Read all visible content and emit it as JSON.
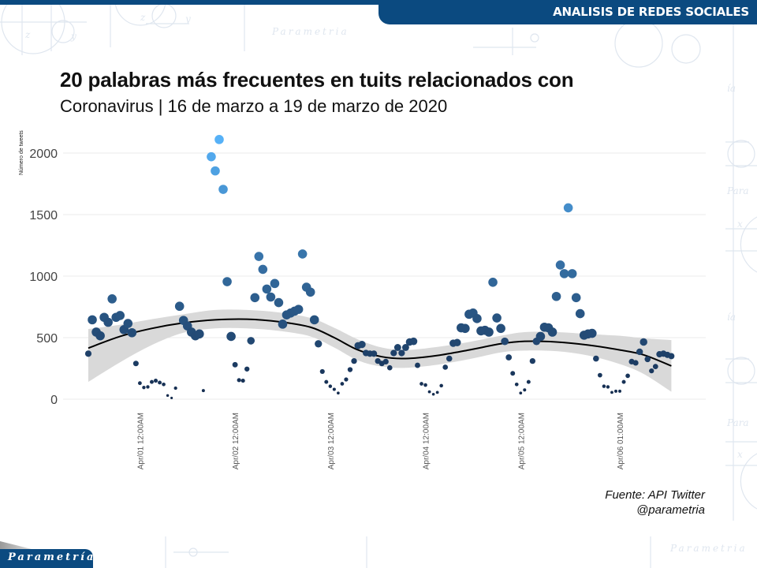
{
  "header": {
    "section_title": "ANALISIS DE REDES SOCIALES"
  },
  "footer": {
    "source_line1": "Fuente: API Twitter",
    "source_line2": "@parametria",
    "logo_text": "Parametría"
  },
  "watermark_text": "Parametría",
  "chart_data": {
    "type": "scatter",
    "title": "20 palabras más frecuentes en tuits relacionados con",
    "subtitle": "Coronavirus | 16 de marzo a 19 de marzo de 2020",
    "xlabel": "",
    "ylabel": "Número de tweets",
    "ylim": [
      0,
      2100
    ],
    "yticks": [
      0,
      500,
      1000,
      1500,
      2000
    ],
    "grid": true,
    "x_unit": "hours since first observation",
    "xticks": [
      {
        "label": "Apr/01 12:00AM",
        "hour": 13
      },
      {
        "label": "Apr/02 12:00AM",
        "hour": 37
      },
      {
        "label": "Apr/03 12:00AM",
        "hour": 61
      },
      {
        "label": "Apr/04 12:00AM",
        "hour": 85
      },
      {
        "label": "Apr/05 12:00AM",
        "hour": 109
      },
      {
        "label": "Apr/06 01:00AM",
        "hour": 134
      }
    ],
    "color_scale": {
      "low": "#13294b",
      "high": "#56b1f7"
    },
    "points": [
      {
        "x": 0,
        "y": 370
      },
      {
        "x": 1,
        "y": 645
      },
      {
        "x": 2,
        "y": 545
      },
      {
        "x": 3,
        "y": 515
      },
      {
        "x": 4,
        "y": 665
      },
      {
        "x": 5,
        "y": 625
      },
      {
        "x": 6,
        "y": 815
      },
      {
        "x": 7,
        "y": 665
      },
      {
        "x": 8,
        "y": 680
      },
      {
        "x": 9,
        "y": 565
      },
      {
        "x": 10,
        "y": 615
      },
      {
        "x": 11,
        "y": 540
      },
      {
        "x": 12,
        "y": 290
      },
      {
        "x": 13,
        "y": 130
      },
      {
        "x": 14,
        "y": 95
      },
      {
        "x": 15,
        "y": 100
      },
      {
        "x": 16,
        "y": 140
      },
      {
        "x": 17,
        "y": 150
      },
      {
        "x": 18,
        "y": 135
      },
      {
        "x": 19,
        "y": 120
      },
      {
        "x": 20,
        "y": 30
      },
      {
        "x": 21,
        "y": 10
      },
      {
        "x": 22,
        "y": 90
      },
      {
        "x": 23,
        "y": 755
      },
      {
        "x": 24,
        "y": 640
      },
      {
        "x": 25,
        "y": 595
      },
      {
        "x": 26,
        "y": 545
      },
      {
        "x": 27,
        "y": 515
      },
      {
        "x": 28,
        "y": 530
      },
      {
        "x": 29,
        "y": 70
      },
      {
        "x": 31,
        "y": 1970
      },
      {
        "x": 32,
        "y": 1855
      },
      {
        "x": 33,
        "y": 2110
      },
      {
        "x": 34,
        "y": 1705
      },
      {
        "x": 35,
        "y": 955
      },
      {
        "x": 36,
        "y": 510
      },
      {
        "x": 37,
        "y": 280
      },
      {
        "x": 38,
        "y": 155
      },
      {
        "x": 39,
        "y": 150
      },
      {
        "x": 40,
        "y": 245
      },
      {
        "x": 41,
        "y": 475
      },
      {
        "x": 42,
        "y": 825
      },
      {
        "x": 43,
        "y": 1160
      },
      {
        "x": 44,
        "y": 1055
      },
      {
        "x": 45,
        "y": 895
      },
      {
        "x": 46,
        "y": 830
      },
      {
        "x": 47,
        "y": 940
      },
      {
        "x": 48,
        "y": 785
      },
      {
        "x": 49,
        "y": 610
      },
      {
        "x": 50,
        "y": 685
      },
      {
        "x": 51,
        "y": 700
      },
      {
        "x": 52,
        "y": 715
      },
      {
        "x": 53,
        "y": 730
      },
      {
        "x": 54,
        "y": 1180
      },
      {
        "x": 55,
        "y": 910
      },
      {
        "x": 56,
        "y": 870
      },
      {
        "x": 57,
        "y": 645
      },
      {
        "x": 58,
        "y": 450
      },
      {
        "x": 59,
        "y": 225
      },
      {
        "x": 60,
        "y": 140
      },
      {
        "x": 61,
        "y": 105
      },
      {
        "x": 62,
        "y": 80
      },
      {
        "x": 63,
        "y": 50
      },
      {
        "x": 64,
        "y": 125
      },
      {
        "x": 65,
        "y": 160
      },
      {
        "x": 66,
        "y": 240
      },
      {
        "x": 67,
        "y": 310
      },
      {
        "x": 68,
        "y": 435
      },
      {
        "x": 69,
        "y": 445
      },
      {
        "x": 70,
        "y": 375
      },
      {
        "x": 71,
        "y": 370
      },
      {
        "x": 72,
        "y": 370
      },
      {
        "x": 73,
        "y": 310
      },
      {
        "x": 74,
        "y": 290
      },
      {
        "x": 75,
        "y": 305
      },
      {
        "x": 76,
        "y": 255
      },
      {
        "x": 77,
        "y": 375
      },
      {
        "x": 78,
        "y": 420
      },
      {
        "x": 79,
        "y": 375
      },
      {
        "x": 80,
        "y": 420
      },
      {
        "x": 81,
        "y": 465
      },
      {
        "x": 82,
        "y": 470
      },
      {
        "x": 83,
        "y": 275
      },
      {
        "x": 84,
        "y": 125
      },
      {
        "x": 85,
        "y": 115
      },
      {
        "x": 86,
        "y": 60
      },
      {
        "x": 87,
        "y": 40
      },
      {
        "x": 88,
        "y": 55
      },
      {
        "x": 89,
        "y": 110
      },
      {
        "x": 90,
        "y": 260
      },
      {
        "x": 91,
        "y": 330
      },
      {
        "x": 92,
        "y": 455
      },
      {
        "x": 93,
        "y": 460
      },
      {
        "x": 94,
        "y": 580
      },
      {
        "x": 95,
        "y": 575
      },
      {
        "x": 96,
        "y": 690
      },
      {
        "x": 97,
        "y": 700
      },
      {
        "x": 98,
        "y": 655
      },
      {
        "x": 99,
        "y": 555
      },
      {
        "x": 100,
        "y": 560
      },
      {
        "x": 101,
        "y": 545
      },
      {
        "x": 102,
        "y": 950
      },
      {
        "x": 103,
        "y": 660
      },
      {
        "x": 104,
        "y": 575
      },
      {
        "x": 105,
        "y": 470
      },
      {
        "x": 106,
        "y": 340
      },
      {
        "x": 107,
        "y": 210
      },
      {
        "x": 108,
        "y": 120
      },
      {
        "x": 109,
        "y": 50
      },
      {
        "x": 110,
        "y": 75
      },
      {
        "x": 111,
        "y": 140
      },
      {
        "x": 112,
        "y": 310
      },
      {
        "x": 113,
        "y": 470
      },
      {
        "x": 114,
        "y": 510
      },
      {
        "x": 115,
        "y": 585
      },
      {
        "x": 116,
        "y": 580
      },
      {
        "x": 117,
        "y": 545
      },
      {
        "x": 118,
        "y": 835
      },
      {
        "x": 119,
        "y": 1090
      },
      {
        "x": 120,
        "y": 1020
      },
      {
        "x": 121,
        "y": 1555
      },
      {
        "x": 122,
        "y": 1020
      },
      {
        "x": 123,
        "y": 825
      },
      {
        "x": 124,
        "y": 695
      },
      {
        "x": 125,
        "y": 520
      },
      {
        "x": 126,
        "y": 530
      },
      {
        "x": 127,
        "y": 535
      },
      {
        "x": 128,
        "y": 330
      },
      {
        "x": 129,
        "y": 195
      },
      {
        "x": 130,
        "y": 105
      },
      {
        "x": 131,
        "y": 100
      },
      {
        "x": 132,
        "y": 55
      },
      {
        "x": 133,
        "y": 65
      },
      {
        "x": 134,
        "y": 65
      },
      {
        "x": 135,
        "y": 140
      },
      {
        "x": 136,
        "y": 190
      },
      {
        "x": 137,
        "y": 305
      },
      {
        "x": 138,
        "y": 295
      },
      {
        "x": 139,
        "y": 385
      },
      {
        "x": 140,
        "y": 465
      },
      {
        "x": 141,
        "y": 325
      },
      {
        "x": 142,
        "y": 230
      },
      {
        "x": 143,
        "y": 265
      },
      {
        "x": 144,
        "y": 365
      },
      {
        "x": 145,
        "y": 370
      },
      {
        "x": 146,
        "y": 360
      },
      {
        "x": 147,
        "y": 350
      }
    ],
    "smooth": {
      "method": "loess",
      "fit": [
        {
          "x": 0,
          "y": 415
        },
        {
          "x": 8,
          "y": 510
        },
        {
          "x": 16,
          "y": 575
        },
        {
          "x": 24,
          "y": 620
        },
        {
          "x": 32,
          "y": 645
        },
        {
          "x": 40,
          "y": 650
        },
        {
          "x": 48,
          "y": 630
        },
        {
          "x": 56,
          "y": 585
        },
        {
          "x": 62,
          "y": 500
        },
        {
          "x": 68,
          "y": 400
        },
        {
          "x": 74,
          "y": 345
        },
        {
          "x": 80,
          "y": 330
        },
        {
          "x": 88,
          "y": 355
        },
        {
          "x": 96,
          "y": 400
        },
        {
          "x": 104,
          "y": 450
        },
        {
          "x": 110,
          "y": 470
        },
        {
          "x": 118,
          "y": 465
        },
        {
          "x": 126,
          "y": 440
        },
        {
          "x": 134,
          "y": 400
        },
        {
          "x": 140,
          "y": 360
        },
        {
          "x": 147,
          "y": 270
        }
      ],
      "upper": [
        {
          "x": 0,
          "y": 570
        },
        {
          "x": 8,
          "y": 605
        },
        {
          "x": 16,
          "y": 650
        },
        {
          "x": 24,
          "y": 690
        },
        {
          "x": 32,
          "y": 725
        },
        {
          "x": 40,
          "y": 725
        },
        {
          "x": 48,
          "y": 705
        },
        {
          "x": 56,
          "y": 660
        },
        {
          "x": 62,
          "y": 580
        },
        {
          "x": 68,
          "y": 485
        },
        {
          "x": 74,
          "y": 420
        },
        {
          "x": 80,
          "y": 400
        },
        {
          "x": 88,
          "y": 425
        },
        {
          "x": 96,
          "y": 465
        },
        {
          "x": 104,
          "y": 515
        },
        {
          "x": 110,
          "y": 545
        },
        {
          "x": 118,
          "y": 545
        },
        {
          "x": 126,
          "y": 530
        },
        {
          "x": 134,
          "y": 515
        },
        {
          "x": 140,
          "y": 495
        },
        {
          "x": 147,
          "y": 480
        }
      ],
      "lower": [
        {
          "x": 0,
          "y": 140
        },
        {
          "x": 8,
          "y": 300
        },
        {
          "x": 16,
          "y": 440
        },
        {
          "x": 24,
          "y": 540
        },
        {
          "x": 32,
          "y": 575
        },
        {
          "x": 40,
          "y": 575
        },
        {
          "x": 48,
          "y": 555
        },
        {
          "x": 56,
          "y": 510
        },
        {
          "x": 62,
          "y": 420
        },
        {
          "x": 68,
          "y": 315
        },
        {
          "x": 74,
          "y": 265
        },
        {
          "x": 80,
          "y": 255
        },
        {
          "x": 88,
          "y": 280
        },
        {
          "x": 96,
          "y": 325
        },
        {
          "x": 104,
          "y": 380
        },
        {
          "x": 110,
          "y": 395
        },
        {
          "x": 118,
          "y": 390
        },
        {
          "x": 126,
          "y": 355
        },
        {
          "x": 134,
          "y": 285
        },
        {
          "x": 140,
          "y": 205
        },
        {
          "x": 147,
          "y": 60
        }
      ]
    }
  }
}
